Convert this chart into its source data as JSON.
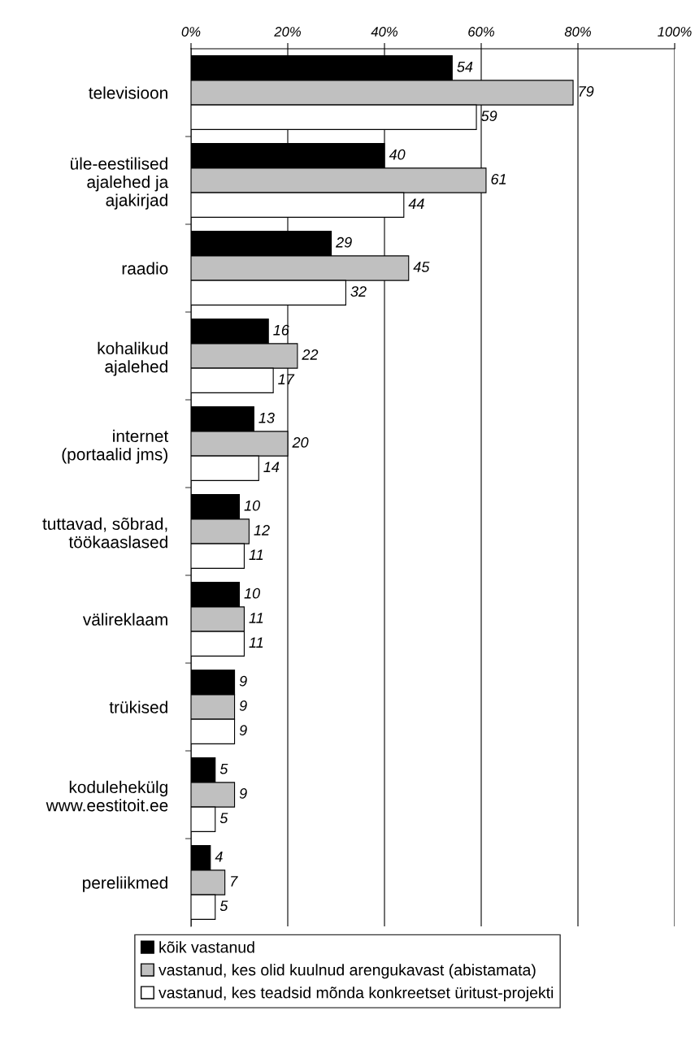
{
  "chart_data": {
    "type": "bar",
    "orientation": "horizontal",
    "categories": [
      "televisioon",
      "üle-eestilised\najalehed ja\najakirjad",
      "raadio",
      "kohalikud\najalehed",
      "internet\n(portaalid jms)",
      "tuttavad, sõbrad,\ntöökaaslased",
      "välireklaam",
      "trükised",
      "kodulehekülg\nwww.eestitoit.ee",
      "pereliikmed"
    ],
    "series": [
      {
        "name": "kõik vastanud",
        "color": "#000000",
        "values": [
          54,
          40,
          29,
          16,
          13,
          10,
          10,
          9,
          5,
          4
        ]
      },
      {
        "name": "vastanud, kes olid kuulnud arengukavast (abistamata)",
        "color": "#c0c0c0",
        "values": [
          79,
          61,
          45,
          22,
          20,
          12,
          11,
          9,
          9,
          7
        ]
      },
      {
        "name": "vastanud, kes teadsid mõnda konkreetset üritust-projekti",
        "color": "#ffffff",
        "values": [
          59,
          44,
          32,
          17,
          14,
          11,
          11,
          9,
          5,
          5
        ]
      }
    ],
    "xlim": [
      0,
      100
    ],
    "xticks": [
      {
        "value": 0,
        "label": "0%"
      },
      {
        "value": 20,
        "label": "20%"
      },
      {
        "value": 40,
        "label": "40%"
      },
      {
        "value": 60,
        "label": "60%"
      },
      {
        "value": 80,
        "label": "80%"
      },
      {
        "value": 100,
        "label": "100%"
      }
    ],
    "grid": "x",
    "data_labels": true,
    "legend": "bottom"
  }
}
